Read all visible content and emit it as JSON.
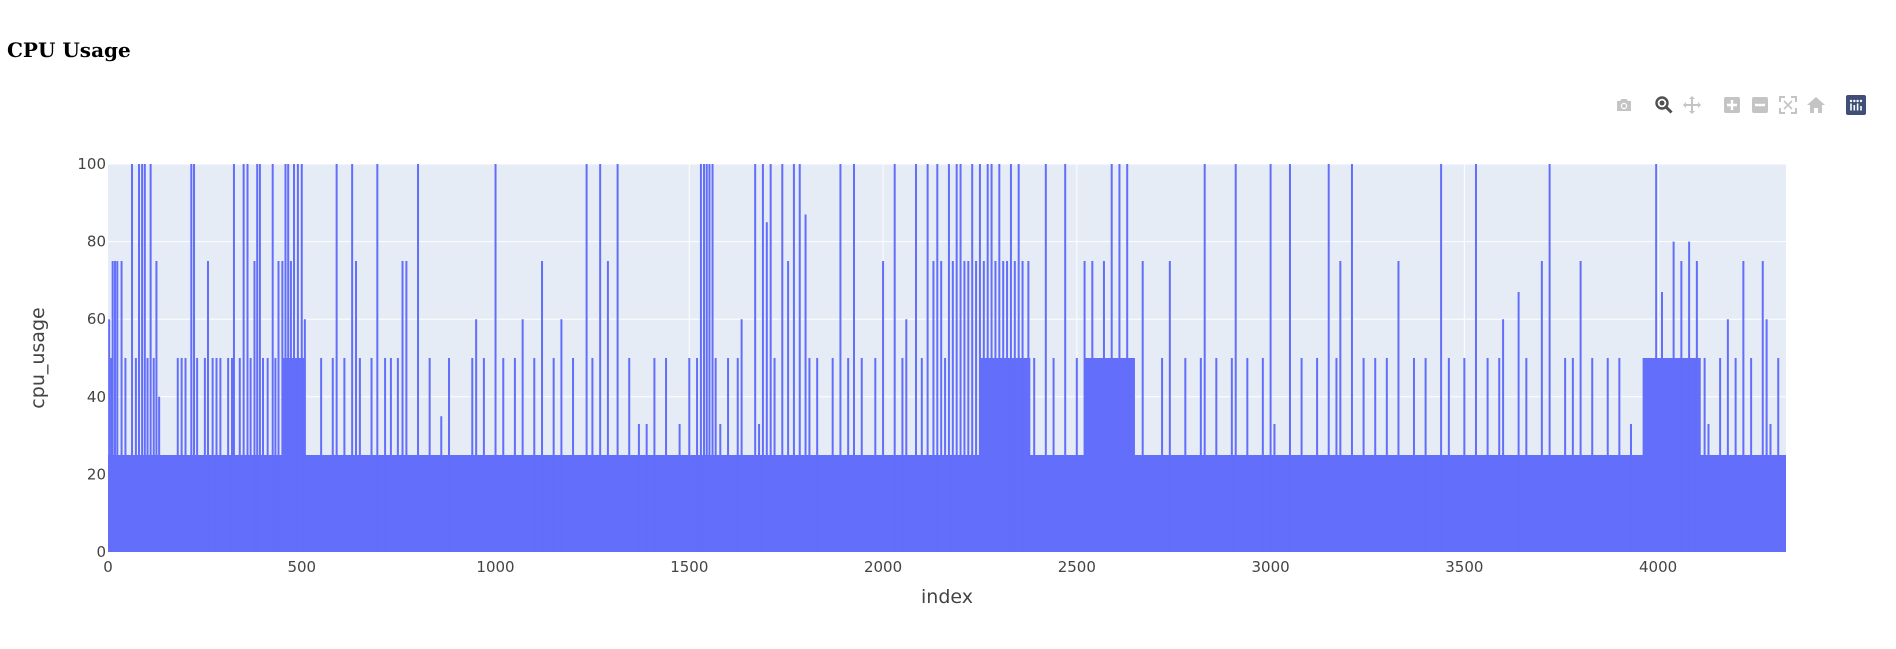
{
  "page": {
    "title": "CPU Usage"
  },
  "modebar": {
    "buttons": [
      {
        "name": "camera-icon",
        "label": "Download plot as a png"
      },
      {
        "name": "zoom-icon",
        "label": "Zoom"
      },
      {
        "name": "pan-icon",
        "label": "Pan"
      },
      {
        "name": "zoom-in-icon",
        "label": "Zoom in"
      },
      {
        "name": "zoom-out-icon",
        "label": "Zoom out"
      },
      {
        "name": "autoscale-icon",
        "label": "Autoscale"
      },
      {
        "name": "home-icon",
        "label": "Reset axes"
      },
      {
        "name": "plotly-logo-icon",
        "label": "Produced with Plotly"
      }
    ]
  },
  "chart_data": {
    "type": "area",
    "title": "CPU Usage",
    "xlabel": "index",
    "ylabel": "cpu_usage",
    "xlim": [
      0,
      4330
    ],
    "ylim": [
      0,
      100
    ],
    "xticks": [
      0,
      500,
      1000,
      1500,
      2000,
      2500,
      3000,
      3500,
      4000
    ],
    "yticks": [
      0,
      20,
      40,
      60,
      80,
      100
    ],
    "grid": true,
    "fill_color": "#636efa",
    "plot_bg": "#e5ecf6",
    "baseline_band": [
      0,
      25
    ],
    "elevated_blocks": [
      {
        "x": [
          450,
          510
        ],
        "level": 50
      },
      {
        "x": [
          2250,
          2380
        ],
        "level": 50
      },
      {
        "x": [
          2520,
          2650
        ],
        "level": 50
      },
      {
        "x": [
          3960,
          4110
        ],
        "level": 50
      }
    ],
    "spikes": [
      {
        "x": 3,
        "y": 60
      },
      {
        "x": 8,
        "y": 50
      },
      {
        "x": 12,
        "y": 75
      },
      {
        "x": 18,
        "y": 75
      },
      {
        "x": 24,
        "y": 75
      },
      {
        "x": 35,
        "y": 75
      },
      {
        "x": 45,
        "y": 50
      },
      {
        "x": 62,
        "y": 100
      },
      {
        "x": 72,
        "y": 50
      },
      {
        "x": 80,
        "y": 100
      },
      {
        "x": 88,
        "y": 100
      },
      {
        "x": 95,
        "y": 100
      },
      {
        "x": 102,
        "y": 50
      },
      {
        "x": 110,
        "y": 100
      },
      {
        "x": 118,
        "y": 50
      },
      {
        "x": 125,
        "y": 75
      },
      {
        "x": 132,
        "y": 40
      },
      {
        "x": 180,
        "y": 50
      },
      {
        "x": 190,
        "y": 50
      },
      {
        "x": 200,
        "y": 50
      },
      {
        "x": 215,
        "y": 100
      },
      {
        "x": 222,
        "y": 100
      },
      {
        "x": 230,
        "y": 50
      },
      {
        "x": 250,
        "y": 50
      },
      {
        "x": 258,
        "y": 75
      },
      {
        "x": 270,
        "y": 50
      },
      {
        "x": 280,
        "y": 50
      },
      {
        "x": 290,
        "y": 50
      },
      {
        "x": 310,
        "y": 50
      },
      {
        "x": 320,
        "y": 50
      },
      {
        "x": 325,
        "y": 100
      },
      {
        "x": 340,
        "y": 50
      },
      {
        "x": 350,
        "y": 100
      },
      {
        "x": 360,
        "y": 100
      },
      {
        "x": 368,
        "y": 50
      },
      {
        "x": 378,
        "y": 75
      },
      {
        "x": 385,
        "y": 100
      },
      {
        "x": 392,
        "y": 100
      },
      {
        "x": 400,
        "y": 50
      },
      {
        "x": 412,
        "y": 50
      },
      {
        "x": 425,
        "y": 100
      },
      {
        "x": 432,
        "y": 50
      },
      {
        "x": 440,
        "y": 75
      },
      {
        "x": 450,
        "y": 75
      },
      {
        "x": 458,
        "y": 100
      },
      {
        "x": 465,
        "y": 100
      },
      {
        "x": 472,
        "y": 75
      },
      {
        "x": 480,
        "y": 100
      },
      {
        "x": 490,
        "y": 100
      },
      {
        "x": 500,
        "y": 100
      },
      {
        "x": 508,
        "y": 60
      },
      {
        "x": 550,
        "y": 50
      },
      {
        "x": 580,
        "y": 50
      },
      {
        "x": 590,
        "y": 100
      },
      {
        "x": 610,
        "y": 50
      },
      {
        "x": 630,
        "y": 100
      },
      {
        "x": 640,
        "y": 75
      },
      {
        "x": 650,
        "y": 50
      },
      {
        "x": 680,
        "y": 50
      },
      {
        "x": 695,
        "y": 100
      },
      {
        "x": 715,
        "y": 50
      },
      {
        "x": 730,
        "y": 50
      },
      {
        "x": 748,
        "y": 50
      },
      {
        "x": 760,
        "y": 75
      },
      {
        "x": 770,
        "y": 75
      },
      {
        "x": 800,
        "y": 100
      },
      {
        "x": 830,
        "y": 50
      },
      {
        "x": 860,
        "y": 35
      },
      {
        "x": 880,
        "y": 50
      },
      {
        "x": 940,
        "y": 50
      },
      {
        "x": 950,
        "y": 60
      },
      {
        "x": 970,
        "y": 50
      },
      {
        "x": 1000,
        "y": 100
      },
      {
        "x": 1020,
        "y": 50
      },
      {
        "x": 1050,
        "y": 50
      },
      {
        "x": 1070,
        "y": 60
      },
      {
        "x": 1100,
        "y": 50
      },
      {
        "x": 1120,
        "y": 75
      },
      {
        "x": 1150,
        "y": 50
      },
      {
        "x": 1170,
        "y": 60
      },
      {
        "x": 1200,
        "y": 50
      },
      {
        "x": 1235,
        "y": 100
      },
      {
        "x": 1250,
        "y": 50
      },
      {
        "x": 1270,
        "y": 100
      },
      {
        "x": 1290,
        "y": 75
      },
      {
        "x": 1315,
        "y": 100
      },
      {
        "x": 1345,
        "y": 50
      },
      {
        "x": 1370,
        "y": 33
      },
      {
        "x": 1390,
        "y": 33
      },
      {
        "x": 1410,
        "y": 50
      },
      {
        "x": 1440,
        "y": 50
      },
      {
        "x": 1475,
        "y": 33
      },
      {
        "x": 1500,
        "y": 50
      },
      {
        "x": 1520,
        "y": 50
      },
      {
        "x": 1530,
        "y": 100
      },
      {
        "x": 1538,
        "y": 100
      },
      {
        "x": 1545,
        "y": 100
      },
      {
        "x": 1552,
        "y": 100
      },
      {
        "x": 1560,
        "y": 100
      },
      {
        "x": 1568,
        "y": 50
      },
      {
        "x": 1580,
        "y": 33
      },
      {
        "x": 1600,
        "y": 50
      },
      {
        "x": 1625,
        "y": 50
      },
      {
        "x": 1635,
        "y": 60
      },
      {
        "x": 1670,
        "y": 100
      },
      {
        "x": 1680,
        "y": 33
      },
      {
        "x": 1690,
        "y": 100
      },
      {
        "x": 1700,
        "y": 85
      },
      {
        "x": 1710,
        "y": 100
      },
      {
        "x": 1720,
        "y": 50
      },
      {
        "x": 1740,
        "y": 100
      },
      {
        "x": 1755,
        "y": 75
      },
      {
        "x": 1770,
        "y": 100
      },
      {
        "x": 1785,
        "y": 100
      },
      {
        "x": 1800,
        "y": 87
      },
      {
        "x": 1810,
        "y": 50
      },
      {
        "x": 1830,
        "y": 50
      },
      {
        "x": 1870,
        "y": 50
      },
      {
        "x": 1890,
        "y": 100
      },
      {
        "x": 1910,
        "y": 50
      },
      {
        "x": 1925,
        "y": 100
      },
      {
        "x": 1945,
        "y": 50
      },
      {
        "x": 1980,
        "y": 50
      },
      {
        "x": 2000,
        "y": 75
      },
      {
        "x": 2030,
        "y": 100
      },
      {
        "x": 2050,
        "y": 50
      },
      {
        "x": 2060,
        "y": 60
      },
      {
        "x": 2085,
        "y": 100
      },
      {
        "x": 2100,
        "y": 50
      },
      {
        "x": 2115,
        "y": 100
      },
      {
        "x": 2130,
        "y": 75
      },
      {
        "x": 2140,
        "y": 100
      },
      {
        "x": 2150,
        "y": 75
      },
      {
        "x": 2160,
        "y": 50
      },
      {
        "x": 2170,
        "y": 100
      },
      {
        "x": 2180,
        "y": 75
      },
      {
        "x": 2190,
        "y": 100
      },
      {
        "x": 2200,
        "y": 100
      },
      {
        "x": 2210,
        "y": 75
      },
      {
        "x": 2220,
        "y": 75
      },
      {
        "x": 2230,
        "y": 100
      },
      {
        "x": 2240,
        "y": 75
      },
      {
        "x": 2250,
        "y": 100
      },
      {
        "x": 2260,
        "y": 75
      },
      {
        "x": 2270,
        "y": 100
      },
      {
        "x": 2280,
        "y": 100
      },
      {
        "x": 2290,
        "y": 75
      },
      {
        "x": 2300,
        "y": 100
      },
      {
        "x": 2310,
        "y": 75
      },
      {
        "x": 2320,
        "y": 75
      },
      {
        "x": 2330,
        "y": 100
      },
      {
        "x": 2340,
        "y": 75
      },
      {
        "x": 2350,
        "y": 100
      },
      {
        "x": 2360,
        "y": 75
      },
      {
        "x": 2375,
        "y": 75
      },
      {
        "x": 2390,
        "y": 50
      },
      {
        "x": 2420,
        "y": 100
      },
      {
        "x": 2440,
        "y": 50
      },
      {
        "x": 2470,
        "y": 100
      },
      {
        "x": 2500,
        "y": 50
      },
      {
        "x": 2520,
        "y": 75
      },
      {
        "x": 2540,
        "y": 75
      },
      {
        "x": 2570,
        "y": 75
      },
      {
        "x": 2590,
        "y": 100
      },
      {
        "x": 2610,
        "y": 100
      },
      {
        "x": 2630,
        "y": 100
      },
      {
        "x": 2645,
        "y": 50
      },
      {
        "x": 2670,
        "y": 75
      },
      {
        "x": 2720,
        "y": 50
      },
      {
        "x": 2740,
        "y": 75
      },
      {
        "x": 2780,
        "y": 50
      },
      {
        "x": 2820,
        "y": 50
      },
      {
        "x": 2830,
        "y": 100
      },
      {
        "x": 2860,
        "y": 50
      },
      {
        "x": 2900,
        "y": 50
      },
      {
        "x": 2910,
        "y": 100
      },
      {
        "x": 2940,
        "y": 50
      },
      {
        "x": 2980,
        "y": 50
      },
      {
        "x": 3000,
        "y": 100
      },
      {
        "x": 3010,
        "y": 33
      },
      {
        "x": 3050,
        "y": 100
      },
      {
        "x": 3080,
        "y": 50
      },
      {
        "x": 3120,
        "y": 50
      },
      {
        "x": 3150,
        "y": 100
      },
      {
        "x": 3170,
        "y": 50
      },
      {
        "x": 3180,
        "y": 75
      },
      {
        "x": 3210,
        "y": 100
      },
      {
        "x": 3240,
        "y": 50
      },
      {
        "x": 3270,
        "y": 50
      },
      {
        "x": 3300,
        "y": 50
      },
      {
        "x": 3330,
        "y": 75
      },
      {
        "x": 3370,
        "y": 50
      },
      {
        "x": 3400,
        "y": 50
      },
      {
        "x": 3440,
        "y": 100
      },
      {
        "x": 3460,
        "y": 50
      },
      {
        "x": 3500,
        "y": 50
      },
      {
        "x": 3530,
        "y": 100
      },
      {
        "x": 3560,
        "y": 50
      },
      {
        "x": 3590,
        "y": 50
      },
      {
        "x": 3600,
        "y": 60
      },
      {
        "x": 3640,
        "y": 67
      },
      {
        "x": 3660,
        "y": 50
      },
      {
        "x": 3700,
        "y": 75
      },
      {
        "x": 3720,
        "y": 100
      },
      {
        "x": 3760,
        "y": 50
      },
      {
        "x": 3780,
        "y": 50
      },
      {
        "x": 3800,
        "y": 75
      },
      {
        "x": 3830,
        "y": 50
      },
      {
        "x": 3870,
        "y": 50
      },
      {
        "x": 3900,
        "y": 50
      },
      {
        "x": 3930,
        "y": 33
      },
      {
        "x": 3995,
        "y": 100
      },
      {
        "x": 4010,
        "y": 67
      },
      {
        "x": 4040,
        "y": 80
      },
      {
        "x": 4060,
        "y": 75
      },
      {
        "x": 4080,
        "y": 80
      },
      {
        "x": 4100,
        "y": 75
      },
      {
        "x": 4120,
        "y": 50
      },
      {
        "x": 4130,
        "y": 33
      },
      {
        "x": 4160,
        "y": 50
      },
      {
        "x": 4180,
        "y": 60
      },
      {
        "x": 4200,
        "y": 50
      },
      {
        "x": 4220,
        "y": 75
      },
      {
        "x": 4240,
        "y": 50
      },
      {
        "x": 4270,
        "y": 75
      },
      {
        "x": 4280,
        "y": 60
      },
      {
        "x": 4290,
        "y": 33
      },
      {
        "x": 4310,
        "y": 50
      }
    ]
  }
}
